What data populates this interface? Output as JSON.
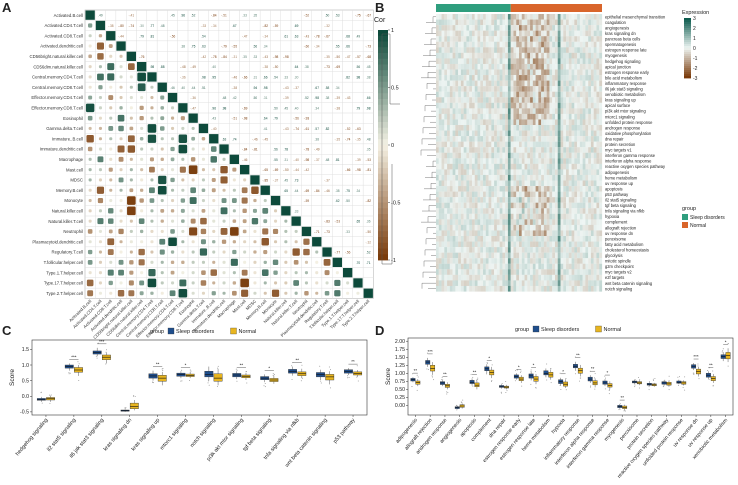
{
  "panels": {
    "a": "A",
    "b": "B",
    "c": "C",
    "d": "D"
  },
  "chart_data": [
    {
      "type": "heatmap",
      "panel": "A",
      "description_kind": "correlation matrix (lower triangle circles/squares, upper triangle values)",
      "legend_title": "Cor",
      "legend_ticks": [
        "1",
        "0.5",
        "0",
        "-0.5",
        "-1"
      ],
      "colors": {
        "pos": "#0d4a3b",
        "mid": "#f4f1e4",
        "neg": "#7a3c0c"
      },
      "cells": [
        "Activated.B.cell",
        "Activated.CD4.T.cell",
        "Activated.CD8.T.cell",
        "Activated.dendritic.cell",
        "CD56bright.natural.killer.cell",
        "CD56dim.natural.killer.cell",
        "Central.memory.CD4.T.cell",
        "Central.memory.CD8.T.cell",
        "Effector.memory.CD4.T.cell",
        "Effector.memory.CD8.T.cell",
        "Eosinophil",
        "Gamma.delta.T.cell",
        "Immature..B.cell",
        "Immature.dendritic.cell",
        "Macrophage",
        "Mast.cell",
        "MDSC",
        "Memory.B.cell",
        "Monocyte",
        "Natural.killer.cell",
        "Natural.killer.T.cell",
        "Neutrophil",
        "Plasmacytoid.dendritic.cell",
        "Regulatory.T.cell",
        "T.follicular.helper.cell",
        "Type.1.T.helper.cell",
        "Type.17.T.helper.cell",
        "Type.2.T.helper.cell"
      ]
    },
    {
      "type": "heatmap",
      "panel": "B",
      "legend_title": "Expression",
      "legend_ticks": [
        "3",
        "2",
        "1",
        "0",
        "-1",
        "-2",
        "-3"
      ],
      "group_title": "group",
      "groups": [
        {
          "name": "Sleep disorders",
          "color": "#2f9e7e"
        },
        {
          "name": "Normal",
          "color": "#d9652b"
        }
      ],
      "rows": [
        "epithelial mesenchymal transition",
        "coagulation",
        "angiogenesis",
        "kras signaling dn",
        "pancreas beta cells",
        "spermatogenesis",
        "estrogen response late",
        "myogenesis",
        "hedgehog signaling",
        "apical junction",
        "estrogen response early",
        "bile acid metabolism",
        "inflammatory response",
        "il6 jak stat3 signaling",
        "xenobiotic metabolism",
        "kras signaling up",
        "apical surface",
        "pi3k akt mtor signaling",
        "mtorc1 signaling",
        "unfolded protein response",
        "androgen response",
        "oxidative phosphorylation",
        "dna repair",
        "protein secretion",
        "myc targets v1",
        "interferon gamma response",
        "interferon alpha response",
        "reactive oxygen species pathway",
        "adipogenesis",
        "heme metabolism",
        "uv response up",
        "apoptosis",
        "p53 pathway",
        "il2 stat5 signaling",
        "tgf beta signaling",
        "tnfa signaling via nfkb",
        "hypoxia",
        "complement",
        "allograft rejection",
        "uv response dn",
        "peroxisome",
        "fatty acid metabolism",
        "cholesterol homeostasis",
        "glycolysis",
        "mitotic spindle",
        "g2m checkpoint",
        "myc targets v2",
        "e2f targets",
        "wnt beta catenin signaling",
        "notch signaling"
      ]
    },
    {
      "type": "box",
      "panel": "C",
      "legend_title": "group",
      "series": [
        {
          "name": "Sleep disorders",
          "color": "#1f4e8c"
        },
        {
          "name": "Normal",
          "color": "#e8b51f"
        }
      ],
      "ylabel": "Score",
      "ylim": [
        -0.6,
        1.8
      ],
      "yticks": [
        -0.5,
        0.0,
        0.5,
        1.0,
        1.5
      ],
      "ytick_labels": [
        "-0.5",
        "0.0",
        "0.5",
        "1.0",
        "1.5"
      ],
      "categories": [
        "hedgehog signaling",
        "il2 stat5 signaling",
        "il6 jak stat3 signaling",
        "kras signaling dn",
        "kras signaling up",
        "mtorc1 signaling",
        "notch signaling",
        "pi3k akt mtor signaling",
        "tgf beta signaling",
        "tnfa signaling via nfkb",
        "wnt beta catenin signaling",
        "p53 pathway"
      ],
      "significance": [
        "",
        "***",
        "***",
        "",
        "**",
        "*",
        "",
        "**",
        "*",
        "**",
        "",
        "**"
      ],
      "sleep": [
        [
          -0.18,
          -0.13,
          -0.1,
          -0.07,
          -0.02
        ],
        [
          0.82,
          0.9,
          0.95,
          1.0,
          1.05
        ],
        [
          1.28,
          1.35,
          1.4,
          1.45,
          1.55
        ],
        [
          -0.5,
          -0.48,
          -0.46,
          -0.44,
          -0.42
        ],
        [
          0.5,
          0.58,
          0.65,
          0.72,
          0.82
        ],
        [
          0.58,
          0.64,
          0.7,
          0.74,
          0.8
        ],
        [
          0.5,
          0.62,
          0.7,
          0.8,
          0.95
        ],
        [
          0.55,
          0.62,
          0.68,
          0.73,
          0.8
        ],
        [
          0.45,
          0.53,
          0.58,
          0.63,
          0.7
        ],
        [
          0.66,
          0.74,
          0.8,
          0.86,
          0.95
        ],
        [
          0.52,
          0.62,
          0.7,
          0.76,
          0.85
        ],
        [
          0.68,
          0.74,
          0.8,
          0.85,
          0.9
        ]
      ],
      "normal": [
        [
          -0.18,
          -0.12,
          -0.08,
          -0.04,
          0.02
        ],
        [
          0.65,
          0.77,
          0.84,
          0.92,
          1.0
        ],
        [
          1.05,
          1.17,
          1.25,
          1.32,
          1.4
        ],
        [
          -0.45,
          -0.4,
          -0.33,
          -0.22,
          -0.12
        ],
        [
          0.35,
          0.48,
          0.58,
          0.67,
          0.78
        ],
        [
          0.58,
          0.63,
          0.67,
          0.71,
          0.78
        ],
        [
          0.35,
          0.48,
          0.58,
          0.72,
          0.88
        ],
        [
          0.52,
          0.59,
          0.64,
          0.68,
          0.75
        ],
        [
          0.4,
          0.47,
          0.52,
          0.57,
          0.66
        ],
        [
          0.58,
          0.66,
          0.72,
          0.78,
          0.88
        ],
        [
          0.38,
          0.52,
          0.62,
          0.7,
          0.8
        ],
        [
          0.62,
          0.68,
          0.73,
          0.78,
          0.84
        ]
      ]
    },
    {
      "type": "box",
      "panel": "D",
      "legend_title": "group",
      "series": [
        {
          "name": "Sleep disorders",
          "color": "#1f4e8c"
        },
        {
          "name": "Normal",
          "color": "#e8b51f"
        }
      ],
      "ylabel": "Score",
      "ylim": [
        -0.3,
        2.1
      ],
      "yticks": [
        0.0,
        0.25,
        0.5,
        0.75,
        1.0,
        1.25,
        1.5,
        1.75,
        2.0
      ],
      "ytick_labels": [
        "0.00",
        "0.25",
        "0.50",
        "0.75",
        "1.00",
        "1.25",
        "1.50",
        "1.75",
        "2.00"
      ],
      "categories": [
        "adipogenesis",
        "allograft rejection",
        "androgen response",
        "angiogenesis",
        "apoptosis",
        "complement",
        "dna repair",
        "estrogen response early",
        "estrogen response late",
        "heme metabolism",
        "hypoxia",
        "inflammatory response",
        "interferon alpha response",
        "interferon gamma response",
        "myogenesis",
        "peroxisome",
        "protein secretion",
        "reactive oxygen species pathway",
        "unfolded protein response",
        "uv response dn",
        "uv response up",
        "xenobiotic metabolism"
      ],
      "significance": [
        "**",
        "***",
        "**",
        "",
        "**",
        "*",
        "",
        "*",
        "*",
        "",
        "*",
        "**",
        "**",
        "*",
        "**",
        "",
        "",
        "",
        "",
        "***",
        "**",
        "*"
      ],
      "sleep": [
        [
          0.72,
          0.76,
          0.8,
          0.84,
          0.88
        ],
        [
          1.2,
          1.28,
          1.35,
          1.4,
          1.48
        ],
        [
          0.6,
          0.65,
          0.7,
          0.74,
          0.78
        ],
        [
          -0.12,
          -0.1,
          -0.07,
          -0.04,
          -0.01
        ],
        [
          0.62,
          0.68,
          0.72,
          0.78,
          0.84
        ],
        [
          1.0,
          1.08,
          1.14,
          1.2,
          1.28
        ],
        [
          0.52,
          0.56,
          0.58,
          0.62,
          0.66
        ],
        [
          0.8,
          0.85,
          0.9,
          0.95,
          1.0
        ],
        [
          0.78,
          0.85,
          0.92,
          0.98,
          1.05
        ],
        [
          0.9,
          0.95,
          1.0,
          1.08,
          1.15
        ],
        [
          0.62,
          0.68,
          0.74,
          0.8,
          0.86
        ],
        [
          1.1,
          1.17,
          1.22,
          1.28,
          1.36
        ],
        [
          0.7,
          0.76,
          0.82,
          0.88,
          0.94
        ],
        [
          0.6,
          0.66,
          0.7,
          0.76,
          0.82
        ],
        [
          -0.1,
          -0.07,
          -0.03,
          0.0,
          0.04
        ],
        [
          0.66,
          0.7,
          0.73,
          0.76,
          0.8
        ],
        [
          0.6,
          0.63,
          0.66,
          0.69,
          0.72
        ],
        [
          0.62,
          0.66,
          0.7,
          0.74,
          0.78
        ],
        [
          0.66,
          0.69,
          0.72,
          0.76,
          0.8
        ],
        [
          1.1,
          1.16,
          1.22,
          1.27,
          1.32
        ],
        [
          0.82,
          0.88,
          0.94,
          1.0,
          1.06
        ],
        [
          1.38,
          1.46,
          1.52,
          1.58,
          1.66
        ]
      ],
      "normal": [
        [
          0.6,
          0.66,
          0.71,
          0.76,
          0.82
        ],
        [
          0.95,
          1.07,
          1.15,
          1.25,
          1.35
        ],
        [
          0.5,
          0.56,
          0.61,
          0.66,
          0.72
        ],
        [
          -0.1,
          -0.06,
          -0.02,
          0.02,
          0.06
        ],
        [
          0.5,
          0.58,
          0.63,
          0.7,
          0.78
        ],
        [
          0.85,
          0.95,
          1.02,
          1.1,
          1.2
        ],
        [
          0.5,
          0.54,
          0.57,
          0.6,
          0.64
        ],
        [
          0.7,
          0.77,
          0.82,
          0.88,
          0.94
        ],
        [
          0.66,
          0.75,
          0.82,
          0.9,
          0.98
        ],
        [
          0.8,
          0.88,
          0.95,
          1.03,
          1.12
        ],
        [
          0.54,
          0.6,
          0.66,
          0.73,
          0.8
        ],
        [
          0.9,
          1.0,
          1.08,
          1.16,
          1.26
        ],
        [
          0.56,
          0.64,
          0.7,
          0.77,
          0.84
        ],
        [
          0.5,
          0.57,
          0.62,
          0.68,
          0.75
        ],
        [
          -0.16,
          -0.1,
          -0.06,
          -0.02,
          0.02
        ],
        [
          0.63,
          0.67,
          0.7,
          0.74,
          0.78
        ],
        [
          0.58,
          0.61,
          0.64,
          0.67,
          0.7
        ],
        [
          0.58,
          0.63,
          0.67,
          0.72,
          0.76
        ],
        [
          0.62,
          0.66,
          0.7,
          0.74,
          0.78
        ],
        [
          0.9,
          0.98,
          1.06,
          1.13,
          1.2
        ],
        [
          0.7,
          0.77,
          0.84,
          0.9,
          0.98
        ],
        [
          1.35,
          1.45,
          1.55,
          1.65,
          1.78
        ]
      ]
    }
  ]
}
